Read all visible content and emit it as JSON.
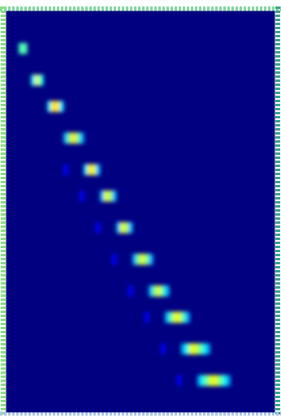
{
  "chart_data": {
    "type": "heatmap",
    "tick_labels": false,
    "xlim": [
      0,
      66
    ],
    "ylim": [
      76,
      0
    ],
    "zlim": [
      0,
      1
    ],
    "cells": [
      [
        3,
        6,
        0.45
      ],
      [
        4,
        6,
        0.45
      ],
      [
        3,
        7,
        0.45
      ],
      [
        4,
        7,
        0.45
      ],
      [
        6,
        12,
        0.35
      ],
      [
        7,
        12,
        0.6
      ],
      [
        8,
        12,
        0.4
      ],
      [
        6,
        13,
        0.35
      ],
      [
        7,
        13,
        0.6
      ],
      [
        8,
        13,
        0.4
      ],
      [
        10,
        17,
        0.35
      ],
      [
        11,
        17,
        0.65
      ],
      [
        12,
        17,
        0.65
      ],
      [
        13,
        17,
        0.35
      ],
      [
        10,
        18,
        0.35
      ],
      [
        11,
        18,
        0.65
      ],
      [
        12,
        18,
        0.65
      ],
      [
        13,
        18,
        0.35
      ],
      [
        14,
        23,
        0.3
      ],
      [
        15,
        23,
        0.5
      ],
      [
        16,
        23,
        0.65
      ],
      [
        17,
        23,
        0.5
      ],
      [
        18,
        23,
        0.3
      ],
      [
        14,
        24,
        0.3
      ],
      [
        15,
        24,
        0.5
      ],
      [
        16,
        24,
        0.65
      ],
      [
        17,
        24,
        0.5
      ],
      [
        18,
        24,
        0.3
      ],
      [
        19,
        29,
        0.35
      ],
      [
        20,
        29,
        0.65
      ],
      [
        21,
        29,
        0.6
      ],
      [
        22,
        29,
        0.3
      ],
      [
        19,
        30,
        0.35
      ],
      [
        20,
        30,
        0.65
      ],
      [
        21,
        30,
        0.6
      ],
      [
        22,
        30,
        0.3
      ],
      [
        14,
        29,
        0.12
      ],
      [
        14,
        30,
        0.12
      ],
      [
        23,
        34,
        0.3
      ],
      [
        24,
        34,
        0.6
      ],
      [
        25,
        34,
        0.55
      ],
      [
        26,
        34,
        0.3
      ],
      [
        23,
        35,
        0.3
      ],
      [
        24,
        35,
        0.6
      ],
      [
        25,
        35,
        0.55
      ],
      [
        26,
        35,
        0.3
      ],
      [
        18,
        34,
        0.12
      ],
      [
        18,
        35,
        0.12
      ],
      [
        27,
        40,
        0.3
      ],
      [
        28,
        40,
        0.6
      ],
      [
        29,
        40,
        0.55
      ],
      [
        30,
        40,
        0.3
      ],
      [
        27,
        41,
        0.3
      ],
      [
        28,
        41,
        0.6
      ],
      [
        29,
        41,
        0.55
      ],
      [
        30,
        41,
        0.3
      ],
      [
        22,
        40,
        0.12
      ],
      [
        22,
        41,
        0.12
      ],
      [
        31,
        46,
        0.3
      ],
      [
        32,
        46,
        0.5
      ],
      [
        33,
        46,
        0.6
      ],
      [
        34,
        46,
        0.5
      ],
      [
        35,
        46,
        0.3
      ],
      [
        31,
        47,
        0.3
      ],
      [
        32,
        47,
        0.5
      ],
      [
        33,
        47,
        0.6
      ],
      [
        34,
        47,
        0.5
      ],
      [
        35,
        47,
        0.3
      ],
      [
        26,
        46,
        0.12
      ],
      [
        26,
        47,
        0.12
      ],
      [
        35,
        52,
        0.3
      ],
      [
        36,
        52,
        0.5
      ],
      [
        37,
        52,
        0.6
      ],
      [
        38,
        52,
        0.45
      ],
      [
        39,
        52,
        0.3
      ],
      [
        35,
        53,
        0.3
      ],
      [
        36,
        53,
        0.5
      ],
      [
        37,
        53,
        0.6
      ],
      [
        38,
        53,
        0.45
      ],
      [
        39,
        53,
        0.3
      ],
      [
        30,
        52,
        0.12
      ],
      [
        30,
        53,
        0.12
      ],
      [
        39,
        57,
        0.3
      ],
      [
        40,
        57,
        0.45
      ],
      [
        41,
        57,
        0.6
      ],
      [
        42,
        57,
        0.6
      ],
      [
        43,
        57,
        0.45
      ],
      [
        44,
        57,
        0.3
      ],
      [
        39,
        58,
        0.3
      ],
      [
        40,
        58,
        0.45
      ],
      [
        41,
        58,
        0.6
      ],
      [
        42,
        58,
        0.6
      ],
      [
        43,
        58,
        0.45
      ],
      [
        44,
        58,
        0.3
      ],
      [
        34,
        57,
        0.12
      ],
      [
        34,
        58,
        0.12
      ],
      [
        43,
        63,
        0.3
      ],
      [
        44,
        63,
        0.4
      ],
      [
        45,
        63,
        0.6
      ],
      [
        46,
        63,
        0.6
      ],
      [
        47,
        63,
        0.5
      ],
      [
        48,
        63,
        0.4
      ],
      [
        49,
        63,
        0.3
      ],
      [
        43,
        64,
        0.3
      ],
      [
        44,
        64,
        0.4
      ],
      [
        45,
        64,
        0.6
      ],
      [
        46,
        64,
        0.6
      ],
      [
        47,
        64,
        0.5
      ],
      [
        48,
        64,
        0.4
      ],
      [
        49,
        64,
        0.3
      ],
      [
        38,
        63,
        0.12
      ],
      [
        38,
        64,
        0.12
      ],
      [
        47,
        69,
        0.3
      ],
      [
        48,
        69,
        0.4
      ],
      [
        49,
        69,
        0.5
      ],
      [
        50,
        69,
        0.6
      ],
      [
        51,
        69,
        0.6
      ],
      [
        52,
        69,
        0.5
      ],
      [
        53,
        69,
        0.4
      ],
      [
        54,
        69,
        0.3
      ],
      [
        47,
        70,
        0.3
      ],
      [
        48,
        70,
        0.4
      ],
      [
        49,
        70,
        0.5
      ],
      [
        50,
        70,
        0.6
      ],
      [
        51,
        70,
        0.6
      ],
      [
        52,
        70,
        0.5
      ],
      [
        53,
        70,
        0.4
      ],
      [
        54,
        70,
        0.3
      ],
      [
        42,
        69,
        0.12
      ],
      [
        42,
        70,
        0.12
      ]
    ]
  }
}
